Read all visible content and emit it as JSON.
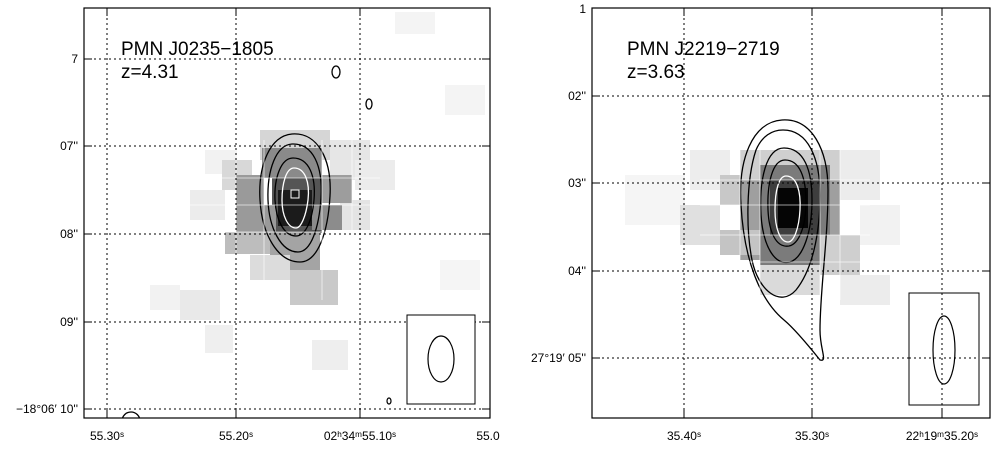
{
  "panels": [
    {
      "title": "PMN J0235−1805",
      "redshift": "z=4.31",
      "y_ticks": [
        "7",
        "07''",
        "08''",
        "09''",
        "−18°06′ 10''"
      ],
      "x_ticks": [
        "55.30ˢ",
        "55.20ˢ",
        "02ʰ34ᵐ55.10ˢ",
        "55.0"
      ]
    },
    {
      "title": "PMN J2219−2719",
      "redshift": "z=3.63",
      "y_ticks": [
        "1",
        "02''",
        "03''",
        "04''",
        "27°19′ 05''"
      ],
      "x_ticks": [
        "35.40ˢ",
        "35.30ˢ",
        "22ʰ19ᵐ35.20ˢ"
      ]
    }
  ]
}
